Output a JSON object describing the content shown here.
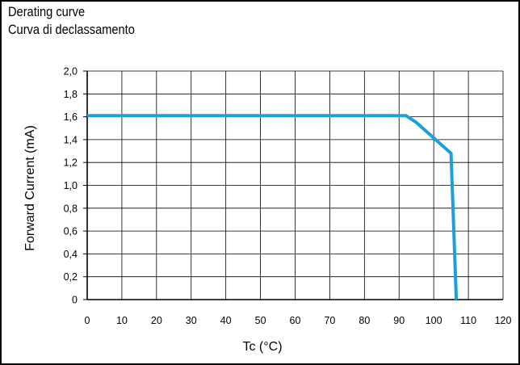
{
  "chart_data": {
    "type": "line",
    "title": "Derating curve",
    "subtitle": "Curva di declassamento",
    "xlabel": "Tc (°C)",
    "ylabel": "Forward Current (mA)",
    "xlim": [
      0,
      120
    ],
    "ylim": [
      0,
      2.0
    ],
    "x_ticks": [
      "0",
      "10",
      "20",
      "30",
      "40",
      "50",
      "60",
      "70",
      "80",
      "90",
      "100",
      "110",
      "120"
    ],
    "y_ticks": [
      "0",
      "0,2",
      "0,4",
      "0,6",
      "0,8",
      "1,0",
      "1,2",
      "1,4",
      "1,6",
      "1,8",
      "2,0"
    ],
    "grid": true,
    "series": [
      {
        "color": "#1ca0dc",
        "x": [
          0,
          92,
          95,
          105,
          106.5
        ],
        "y": [
          1.61,
          1.61,
          1.55,
          1.28,
          0
        ]
      }
    ]
  }
}
